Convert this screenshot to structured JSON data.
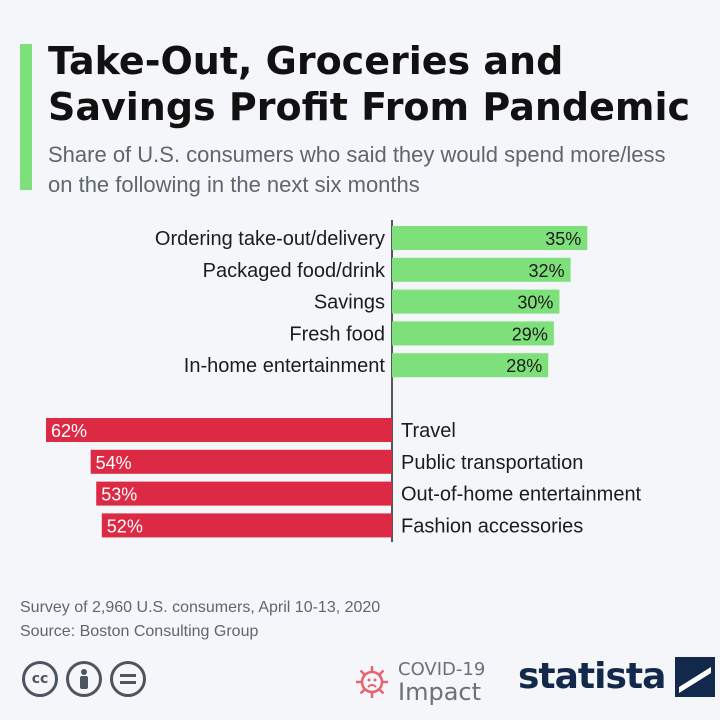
{
  "header": {
    "title": "Take-Out, Groceries and Savings Profit From Pandemic",
    "subtitle": "Share of U.S. consumers who said they would spend more/less on the following in the next six months"
  },
  "chart_data": {
    "type": "bar",
    "orientation": "horizontal-diverging",
    "unit": "%",
    "series": [
      {
        "direction": "more",
        "color": "#7ee07a",
        "categories": [
          "Ordering take-out/delivery",
          "Packaged food/drink",
          "Savings",
          "Fresh food",
          "In-home entertainment"
        ],
        "values": [
          35,
          32,
          30,
          29,
          28
        ]
      },
      {
        "direction": "less",
        "color": "#dc2a44",
        "categories": [
          "Travel",
          "Public transportation",
          "Out-of-home entertainment",
          "Fashion accessories"
        ],
        "values": [
          62,
          54,
          53,
          52
        ]
      }
    ],
    "xlim": [
      0,
      62
    ],
    "grid": false,
    "legend": "none"
  },
  "footer": {
    "survey": "Survey of 2,960 U.S. consumers, April 10-13, 2020",
    "source": "Source: Boston Consulting Group"
  },
  "branding": {
    "license_icons": [
      "cc-icon",
      "attribution-icon",
      "no-derivatives-icon"
    ],
    "covid_line1": "COVID-19",
    "covid_line2": "Impact",
    "logo_text": "statista"
  }
}
